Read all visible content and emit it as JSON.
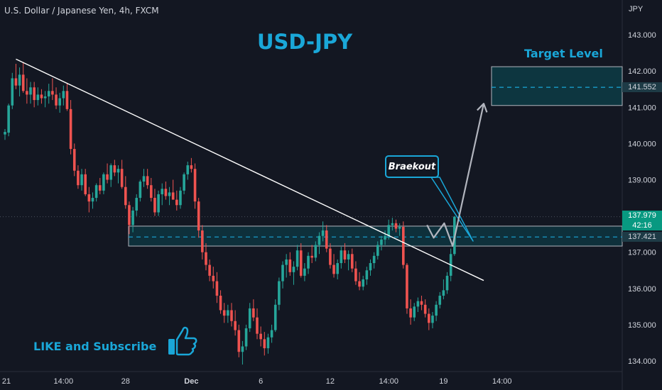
{
  "header": {
    "symbol_line": "U.S. Dollar / Japanese Yen, 4h, FXCM"
  },
  "title": "USD-JPY",
  "target_label": "Target Level",
  "breakout_label": "Braekout",
  "like_text": "LIKE and Subscribe",
  "price_tags": {
    "current": "137.979",
    "countdown": "42:16",
    "support": "137.421",
    "target": "141.552"
  },
  "colors": {
    "background": "#131722",
    "bull": "#26a69a",
    "bear": "#ef5350",
    "accent": "#1aa7d8",
    "zone_fill": "#0d3a44"
  },
  "chart_data": {
    "type": "candlestick",
    "title": "USD-JPY",
    "y_unit": "JPY",
    "ylim": [
      133.8,
      143.6
    ],
    "y_ticks": [
      134,
      135,
      136,
      137,
      138,
      139,
      140,
      141,
      142,
      143
    ],
    "y_tick_labels": [
      "134.000",
      "135.000",
      "136.000",
      "137.000",
      "138.000",
      "139.000",
      "140.000",
      "141.000",
      "142.000",
      "143.000"
    ],
    "x_tick_labels": [
      "21",
      "14:00",
      "28",
      "Dec",
      "6",
      "12",
      "14:00",
      "19",
      "14:00"
    ],
    "x_tick_index": [
      0,
      16,
      33,
      51,
      70,
      89,
      105,
      120,
      136
    ],
    "last_price": 137.979,
    "support_zone": [
      137.17,
      137.72
    ],
    "support_level": 137.421,
    "target_zone": [
      141.05,
      142.12
    ],
    "target_level": 141.552,
    "trendline": [
      {
        "i": 3,
        "p": 142.33
      },
      {
        "i": 131,
        "p": 136.22
      }
    ],
    "projection": [
      {
        "i": 115.5,
        "p": 137.75
      },
      {
        "i": 117.3,
        "p": 137.4
      },
      {
        "i": 120.2,
        "p": 137.8
      },
      {
        "i": 122.5,
        "p": 137.17
      },
      {
        "i": 131,
        "p": 141.1
      }
    ],
    "candles": [
      [
        140.25,
        140.4,
        140.1,
        140.32
      ],
      [
        140.3,
        141.1,
        140.2,
        141.05
      ],
      [
        141.05,
        141.95,
        140.95,
        141.8
      ],
      [
        141.8,
        142.2,
        141.5,
        141.6
      ],
      [
        141.6,
        142.1,
        141.3,
        141.9
      ],
      [
        141.9,
        142.25,
        141.4,
        141.45
      ],
      [
        141.45,
        141.8,
        141.1,
        141.35
      ],
      [
        141.35,
        141.7,
        141.1,
        141.55
      ],
      [
        141.55,
        141.7,
        141.0,
        141.2
      ],
      [
        141.2,
        141.55,
        141.05,
        141.35
      ],
      [
        141.35,
        141.5,
        141.1,
        141.25
      ],
      [
        141.25,
        141.45,
        141.0,
        141.3
      ],
      [
        141.3,
        141.65,
        141.1,
        141.45
      ],
      [
        141.45,
        141.8,
        141.2,
        141.35
      ],
      [
        141.35,
        141.55,
        140.95,
        141.05
      ],
      [
        141.05,
        141.4,
        140.85,
        141.25
      ],
      [
        141.25,
        141.6,
        141.05,
        141.45
      ],
      [
        141.45,
        141.65,
        140.9,
        140.95
      ],
      [
        140.95,
        141.2,
        139.7,
        139.85
      ],
      [
        139.85,
        140.0,
        139.1,
        139.25
      ],
      [
        139.25,
        139.4,
        138.75,
        138.85
      ],
      [
        138.85,
        139.3,
        138.7,
        139.15
      ],
      [
        139.15,
        139.3,
        138.55,
        138.6
      ],
      [
        138.6,
        138.8,
        138.1,
        138.4
      ],
      [
        138.4,
        138.65,
        138.2,
        138.5
      ],
      [
        138.5,
        138.9,
        138.4,
        138.85
      ],
      [
        138.85,
        139.05,
        138.6,
        138.7
      ],
      [
        138.7,
        139.2,
        138.6,
        139.15
      ],
      [
        139.15,
        139.45,
        138.9,
        139.0
      ],
      [
        139.0,
        139.45,
        138.8,
        139.4
      ],
      [
        139.4,
        139.55,
        139.1,
        139.2
      ],
      [
        139.2,
        139.4,
        138.9,
        139.3
      ],
      [
        139.3,
        139.55,
        138.75,
        138.8
      ],
      [
        138.8,
        139.1,
        138.2,
        138.3
      ],
      [
        138.3,
        138.4,
        137.5,
        137.75
      ],
      [
        137.75,
        138.25,
        137.55,
        138.15
      ],
      [
        138.15,
        138.6,
        138.0,
        138.5
      ],
      [
        138.5,
        139.0,
        138.4,
        138.95
      ],
      [
        138.95,
        139.3,
        138.8,
        139.1
      ],
      [
        139.1,
        139.3,
        138.75,
        138.85
      ],
      [
        138.85,
        139.05,
        138.4,
        138.5
      ],
      [
        138.5,
        138.75,
        138.0,
        138.1
      ],
      [
        138.1,
        138.7,
        138.0,
        138.6
      ],
      [
        138.6,
        138.9,
        138.3,
        138.75
      ],
      [
        138.75,
        138.95,
        138.45,
        138.55
      ],
      [
        138.55,
        138.8,
        138.3,
        138.65
      ],
      [
        138.65,
        139.0,
        138.5,
        138.45
      ],
      [
        138.45,
        138.7,
        138.15,
        138.3
      ],
      [
        138.3,
        138.8,
        138.2,
        138.7
      ],
      [
        138.7,
        139.2,
        138.6,
        139.15
      ],
      [
        139.15,
        139.5,
        139.0,
        139.4
      ],
      [
        139.4,
        139.6,
        139.2,
        139.3
      ],
      [
        139.3,
        139.45,
        138.2,
        138.4
      ],
      [
        138.4,
        138.5,
        137.4,
        137.6
      ],
      [
        137.6,
        137.75,
        136.8,
        137.0
      ],
      [
        137.0,
        137.25,
        136.5,
        136.65
      ],
      [
        136.65,
        136.8,
        136.2,
        136.35
      ],
      [
        136.35,
        136.6,
        136.0,
        136.2
      ],
      [
        136.2,
        136.45,
        135.6,
        135.8
      ],
      [
        135.8,
        135.95,
        135.3,
        135.4
      ],
      [
        135.4,
        135.6,
        135.05,
        135.25
      ],
      [
        135.25,
        135.55,
        135.05,
        135.4
      ],
      [
        135.4,
        135.6,
        134.95,
        135.1
      ],
      [
        135.1,
        135.4,
        134.7,
        134.85
      ],
      [
        134.85,
        135.0,
        134.1,
        134.25
      ],
      [
        134.25,
        134.55,
        133.9,
        134.4
      ],
      [
        134.4,
        135.0,
        134.3,
        134.9
      ],
      [
        134.9,
        135.6,
        134.8,
        135.45
      ],
      [
        135.45,
        135.7,
        135.1,
        135.2
      ],
      [
        135.2,
        135.45,
        134.6,
        134.75
      ],
      [
        134.75,
        134.95,
        134.4,
        134.6
      ],
      [
        134.6,
        134.8,
        134.15,
        134.35
      ],
      [
        134.35,
        134.75,
        134.2,
        134.65
      ],
      [
        134.65,
        135.0,
        134.5,
        134.85
      ],
      [
        134.85,
        135.7,
        134.8,
        135.55
      ],
      [
        135.55,
        136.3,
        135.4,
        136.2
      ],
      [
        136.2,
        136.75,
        136.0,
        136.65
      ],
      [
        136.65,
        136.95,
        136.3,
        136.8
      ],
      [
        136.8,
        137.0,
        136.35,
        136.45
      ],
      [
        136.45,
        136.75,
        136.1,
        136.6
      ],
      [
        136.6,
        137.2,
        136.5,
        137.05
      ],
      [
        137.05,
        137.25,
        136.3,
        136.35
      ],
      [
        136.35,
        136.7,
        136.2,
        136.55
      ],
      [
        136.55,
        137.0,
        136.4,
        136.9
      ],
      [
        136.9,
        137.2,
        136.7,
        136.85
      ],
      [
        136.85,
        137.3,
        136.75,
        137.2
      ],
      [
        137.2,
        137.55,
        136.95,
        137.45
      ],
      [
        137.45,
        137.85,
        137.3,
        137.6
      ],
      [
        137.6,
        137.75,
        137.0,
        137.1
      ],
      [
        137.1,
        137.25,
        136.55,
        136.65
      ],
      [
        136.65,
        136.95,
        136.3,
        136.4
      ],
      [
        136.4,
        136.8,
        136.25,
        136.7
      ],
      [
        136.7,
        137.15,
        136.55,
        137.05
      ],
      [
        137.05,
        137.25,
        136.7,
        136.8
      ],
      [
        136.8,
        137.05,
        136.5,
        136.95
      ],
      [
        136.95,
        137.1,
        136.45,
        136.55
      ],
      [
        136.55,
        136.75,
        136.1,
        136.2
      ],
      [
        136.2,
        136.45,
        135.95,
        136.05
      ],
      [
        136.05,
        136.35,
        135.95,
        136.25
      ],
      [
        136.25,
        136.6,
        136.1,
        136.5
      ],
      [
        136.5,
        136.8,
        136.35,
        136.7
      ],
      [
        136.7,
        137.0,
        136.55,
        136.9
      ],
      [
        136.9,
        137.3,
        136.8,
        137.2
      ],
      [
        137.2,
        137.45,
        137.05,
        137.35
      ],
      [
        137.35,
        137.6,
        137.2,
        137.45
      ],
      [
        137.45,
        137.9,
        137.35,
        137.75
      ],
      [
        137.75,
        137.95,
        137.6,
        137.8
      ],
      [
        137.8,
        137.9,
        137.55,
        137.65
      ],
      [
        137.65,
        137.8,
        137.45,
        137.7
      ],
      [
        137.7,
        137.85,
        136.55,
        136.65
      ],
      [
        136.65,
        136.7,
        135.3,
        135.45
      ],
      [
        135.45,
        135.7,
        135.0,
        135.2
      ],
      [
        135.2,
        135.6,
        135.1,
        135.5
      ],
      [
        135.5,
        135.75,
        135.35,
        135.65
      ],
      [
        135.65,
        135.8,
        135.4,
        135.55
      ],
      [
        135.55,
        135.7,
        135.2,
        135.3
      ],
      [
        135.3,
        135.45,
        134.85,
        135.05
      ],
      [
        135.05,
        135.35,
        134.9,
        135.25
      ],
      [
        135.25,
        135.65,
        135.1,
        135.55
      ],
      [
        135.55,
        135.9,
        135.45,
        135.8
      ],
      [
        135.8,
        136.25,
        135.7,
        135.95
      ],
      [
        135.95,
        136.45,
        135.85,
        136.35
      ],
      [
        136.35,
        137.1,
        136.2,
        136.95
      ],
      [
        136.95,
        138.0,
        136.9,
        137.98
      ]
    ]
  }
}
